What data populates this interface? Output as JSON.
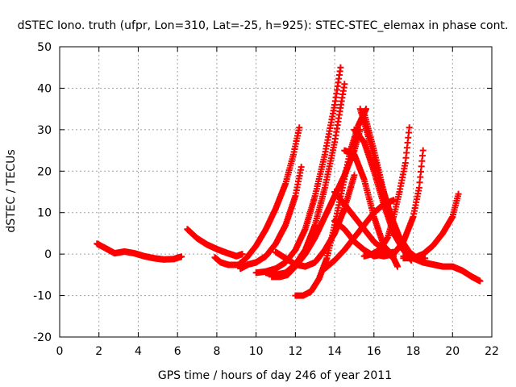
{
  "chart_data": {
    "type": "scatter",
    "title": "dSTEC Iono. truth (ufpr, Lon=310, Lat=-25, h=925): STEC-STEC_elemax in phase cont.",
    "xlabel": "GPS time / hours of day 246 of year 2011",
    "ylabel": "dSTEC  / TECUs",
    "xlim": [
      0,
      22
    ],
    "ylim": [
      -20,
      50
    ],
    "xticks": [
      0,
      2,
      4,
      6,
      8,
      10,
      12,
      14,
      16,
      18,
      20,
      22
    ],
    "yticks": [
      -20,
      -10,
      0,
      10,
      20,
      30,
      40,
      50
    ],
    "grid": true,
    "marker": "plus",
    "color": "#ff0000",
    "series": [
      {
        "x": [
          1.9,
          2.3,
          2.8,
          3.3,
          3.8,
          4.3,
          4.8,
          5.3,
          5.8,
          6.2
        ],
        "y": [
          2.5,
          1.5,
          0.2,
          0.6,
          0.2,
          -0.5,
          -1.0,
          -1.3,
          -1.2,
          -0.6
        ]
      },
      {
        "x": [
          6.5,
          7.0,
          7.5,
          8.0,
          8.5,
          9.0,
          9.3
        ],
        "y": [
          6.0,
          3.8,
          2.3,
          1.2,
          0.3,
          -0.5,
          0.0
        ]
      },
      {
        "x": [
          7.9,
          8.2,
          8.6,
          9.1,
          9.5,
          10.0,
          10.5,
          11.0,
          11.5,
          11.9,
          12.2
        ],
        "y": [
          -0.8,
          -2.0,
          -2.6,
          -2.6,
          -1.0,
          2.0,
          6.0,
          11.0,
          17.0,
          24.0,
          30.5
        ]
      },
      {
        "x": [
          9.2,
          9.6,
          10.0,
          10.5,
          11.0,
          11.5,
          12.0,
          12.3
        ],
        "y": [
          -3.5,
          -2.5,
          -2.0,
          -0.5,
          2.5,
          7.0,
          14.0,
          21.0
        ]
      },
      {
        "x": [
          10.0,
          10.5,
          11.0,
          11.5,
          12.0,
          12.5,
          13.0,
          13.5,
          14.0,
          14.3
        ],
        "y": [
          -4.5,
          -4.2,
          -3.5,
          -2.0,
          1.0,
          6.0,
          14.0,
          24.0,
          36.0,
          45.0
        ]
      },
      {
        "x": [
          10.5,
          11.0,
          11.5,
          12.0,
          12.5,
          13.0,
          13.5,
          14.0,
          14.5
        ],
        "y": [
          -4.5,
          -5.0,
          -4.5,
          -2.5,
          1.0,
          7.0,
          16.0,
          27.0,
          41.0
        ]
      },
      {
        "x": [
          10.8,
          11.2,
          11.6,
          12.0,
          12.5,
          13.0,
          13.5,
          14.0,
          14.5,
          15.0,
          15.3
        ],
        "y": [
          -5.5,
          -5.5,
          -5.0,
          -3.0,
          0.0,
          4.0,
          9.0,
          14.0,
          19.0,
          25.0,
          30.0
        ]
      },
      {
        "x": [
          11.0,
          11.5,
          12.0,
          12.5,
          13.0,
          13.5,
          14.0,
          14.5,
          15.0
        ],
        "y": [
          0.5,
          -1.0,
          -2.5,
          -3.0,
          -2.0,
          1.0,
          5.0,
          11.0,
          19.0
        ]
      },
      {
        "x": [
          12.0,
          12.4,
          12.8,
          13.2,
          13.6,
          14.0,
          14.4,
          14.8,
          15.2,
          15.6
        ],
        "y": [
          -10.0,
          -10.0,
          -9.0,
          -6.0,
          -1.0,
          7.0,
          16.0,
          25.0,
          31.0,
          35.0
        ]
      },
      {
        "x": [
          13.5,
          14.0,
          14.5,
          15.0,
          15.5,
          16.0,
          16.5,
          17.0
        ],
        "y": [
          -3.5,
          -1.5,
          1.0,
          4.0,
          7.0,
          10.0,
          12.0,
          13.0
        ]
      },
      {
        "x": [
          14.0,
          14.5,
          15.0,
          15.5,
          16.0,
          16.5,
          17.0,
          17.2
        ],
        "y": [
          15.0,
          12.0,
          9.0,
          6.0,
          3.0,
          1.0,
          -1.0,
          -3.0
        ]
      },
      {
        "x": [
          14.0,
          14.5,
          15.0,
          15.5,
          16.0,
          16.5,
          17.0
        ],
        "y": [
          8.0,
          6.0,
          3.0,
          1.0,
          -0.5,
          0.0,
          0.5
        ]
      },
      {
        "x": [
          14.5,
          15.0,
          15.5,
          16.0,
          16.5,
          17.0
        ],
        "y": [
          25.0,
          24.0,
          18.0,
          9.0,
          2.0,
          -0.5
        ]
      },
      {
        "x": [
          15.0,
          15.5,
          16.0,
          16.5,
          17.0,
          17.5,
          17.9
        ],
        "y": [
          30.0,
          27.0,
          20.0,
          12.0,
          5.0,
          1.0,
          -1.5
        ]
      },
      {
        "x": [
          15.3,
          15.8,
          16.3,
          16.8,
          17.3,
          17.8,
          18.2,
          18.6
        ],
        "y": [
          35.0,
          27.0,
          18.0,
          10.0,
          4.0,
          0.5,
          -1.0,
          -1.0
        ]
      },
      {
        "x": [
          15.5,
          16.0,
          16.5,
          17.0,
          17.5,
          17.9
        ],
        "y": [
          34.0,
          25.0,
          15.0,
          7.0,
          2.0,
          -0.5
        ]
      },
      {
        "x": [
          15.5,
          15.9,
          16.3,
          16.7,
          17.0,
          17.3,
          17.6,
          17.8
        ],
        "y": [
          -0.5,
          0.0,
          1.0,
          4.0,
          9.0,
          15.0,
          22.0,
          30.5
        ]
      },
      {
        "x": [
          16.0,
          16.5,
          17.0,
          17.5,
          18.0,
          18.3,
          18.5
        ],
        "y": [
          0.0,
          -0.5,
          0.0,
          3.0,
          9.0,
          16.0,
          25.0
        ]
      },
      {
        "x": [
          17.5,
          18.0,
          18.5,
          19.0,
          19.5,
          20.0,
          20.3
        ],
        "y": [
          -1.0,
          -1.0,
          0.0,
          2.0,
          5.0,
          9.0,
          14.5
        ]
      },
      {
        "x": [
          17.5,
          18.0,
          18.5,
          19.0,
          19.5,
          20.0,
          20.5,
          21.0,
          21.4
        ],
        "y": [
          -0.5,
          -1.0,
          -2.0,
          -2.5,
          -3.0,
          -3.0,
          -4.0,
          -5.5,
          -6.5
        ]
      }
    ]
  }
}
